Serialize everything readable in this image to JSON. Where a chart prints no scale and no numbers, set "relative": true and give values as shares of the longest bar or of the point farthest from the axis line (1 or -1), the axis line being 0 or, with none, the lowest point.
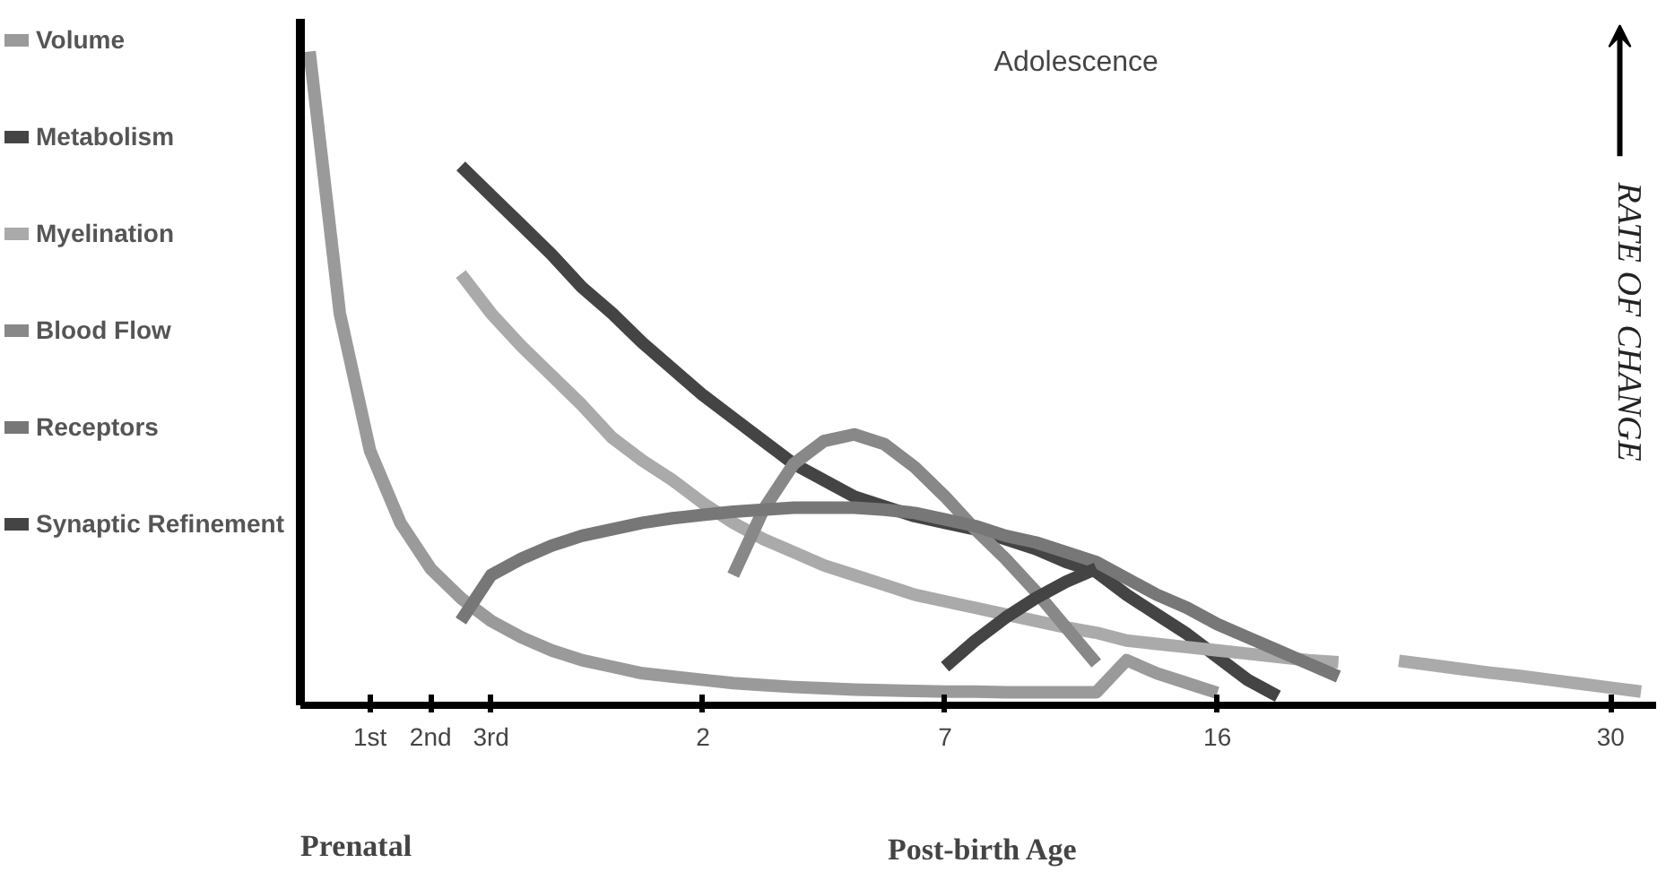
{
  "chart_data": {
    "type": "line",
    "relative": true,
    "ylabel": "RATE OF CHANGE",
    "legend": "left",
    "annotations": [
      "Adolescence",
      "Prenatal",
      "Post-birth Age"
    ],
    "categories": [
      null,
      null,
      "1st",
      null,
      "2nd",
      null,
      "3rd",
      null,
      null,
      null,
      null,
      null,
      null,
      "2",
      null,
      null,
      null,
      null,
      null,
      null,
      null,
      "7",
      null,
      null,
      null,
      null,
      null,
      null,
      null,
      null,
      "16",
      null,
      null,
      null,
      null,
      null,
      null,
      null,
      null,
      null,
      null,
      null,
      null,
      "30",
      null
    ],
    "series": [
      {
        "name": "Volume",
        "color": "#9a9a9a",
        "values": [
          1.0,
          0.6,
          0.39,
          0.28,
          0.21,
          0.165,
          0.13,
          0.105,
          0.085,
          0.07,
          0.06,
          0.05,
          0.045,
          0.04,
          0.035,
          0.032,
          0.029,
          0.027,
          0.025,
          0.024,
          0.023,
          0.022,
          0.022,
          0.021,
          0.021,
          0.021,
          0.021,
          0.07,
          0.05,
          0.035,
          0.02,
          null,
          null,
          null,
          null,
          null,
          null,
          null,
          null,
          null,
          null,
          null,
          null,
          null,
          null
        ]
      },
      {
        "name": "Metabolism",
        "color": "#444444",
        "values": [
          null,
          null,
          null,
          null,
          null,
          0.825,
          0.78,
          0.735,
          0.69,
          0.64,
          0.6,
          0.555,
          0.515,
          0.475,
          0.44,
          0.405,
          0.37,
          0.345,
          0.32,
          0.305,
          0.29,
          0.28,
          0.27,
          0.255,
          0.24,
          0.22,
          0.205,
          0.17,
          0.14,
          0.11,
          0.075,
          0.04,
          0.015,
          null,
          null,
          null,
          null,
          null,
          null,
          null,
          null,
          null,
          null,
          null,
          null
        ]
      },
      {
        "name": "Myelination",
        "color": "#aaaaaa",
        "values": [
          null,
          null,
          null,
          null,
          null,
          0.66,
          0.6,
          0.55,
          0.505,
          0.46,
          0.41,
          0.375,
          0.345,
          0.31,
          0.28,
          0.255,
          0.235,
          0.215,
          0.2,
          0.185,
          0.17,
          0.16,
          0.15,
          0.14,
          0.13,
          0.12,
          0.112,
          0.1,
          0.095,
          0.09,
          0.085,
          0.08,
          0.075,
          0.07,
          0.067,
          null,
          0.069,
          0.063,
          0.057,
          0.051,
          0.046,
          0.04,
          0.034,
          0.028,
          0.022
        ]
      },
      {
        "name": "Blood Flow",
        "color": "#888888",
        "values": [
          null,
          null,
          null,
          null,
          null,
          null,
          null,
          null,
          null,
          null,
          null,
          null,
          null,
          null,
          0.2,
          0.3,
          0.37,
          0.405,
          0.415,
          0.4,
          0.365,
          0.32,
          0.27,
          0.225,
          0.175,
          0.12,
          0.065,
          null,
          null,
          null,
          null,
          null,
          null,
          null,
          null,
          null,
          null,
          null,
          null,
          null,
          null,
          null,
          null,
          null,
          null
        ]
      },
      {
        "name": "Receptors",
        "color": "#777777",
        "values": [
          null,
          null,
          null,
          null,
          null,
          0.13,
          0.2,
          0.225,
          0.245,
          0.26,
          0.27,
          0.28,
          0.287,
          0.292,
          0.297,
          0.3,
          0.303,
          0.303,
          0.303,
          0.3,
          0.295,
          0.285,
          0.275,
          0.26,
          0.25,
          0.235,
          0.22,
          0.195,
          0.17,
          0.15,
          0.125,
          0.105,
          0.085,
          0.065,
          0.045,
          null,
          null,
          null,
          null,
          null,
          null,
          null,
          null,
          null,
          null
        ]
      },
      {
        "name": "Synaptic Refinement",
        "color": "#444444",
        "values": [
          null,
          null,
          null,
          null,
          null,
          null,
          null,
          null,
          null,
          null,
          null,
          null,
          null,
          null,
          null,
          null,
          null,
          null,
          null,
          null,
          null,
          0.06,
          0.1,
          0.135,
          0.165,
          0.19,
          0.21,
          null,
          null,
          null,
          null,
          null,
          null,
          null,
          null,
          null,
          null,
          null,
          null,
          null,
          null,
          null,
          null,
          null,
          null
        ]
      }
    ]
  }
}
